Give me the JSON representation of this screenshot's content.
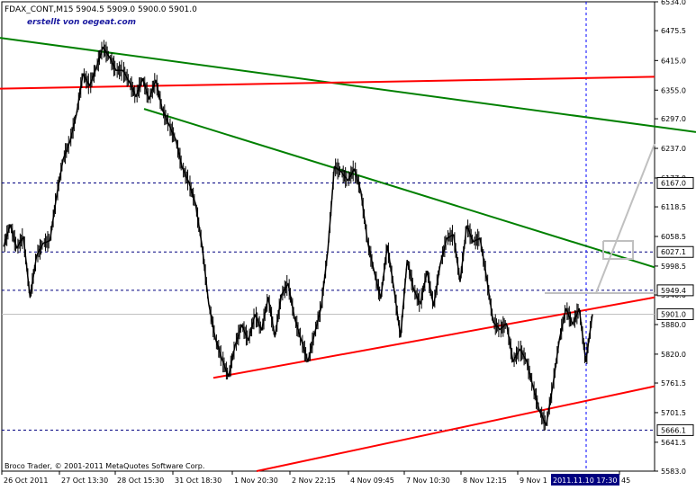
{
  "chart_data": {
    "type": "line",
    "title": "FDAX_CONT,M15  5904.5 5909.0 5900.0 5901.0",
    "watermark": "erstellt von oegeat.com",
    "copyright": "Broco Trader, © 2001-2011 MetaQuotes Software Corp.",
    "xlabel": "",
    "ylabel": "",
    "ylim": [
      5583,
      6534
    ],
    "y_ticks": [
      "6534.0",
      "6475.5",
      "6415.0",
      "6355.0",
      "6297.0",
      "6237.0",
      "6177.0",
      "6118.5",
      "6058.5",
      "5998.5",
      "5940.0",
      "5880.0",
      "5820.0",
      "5761.5",
      "5701.5",
      "5641.5",
      "5583.0"
    ],
    "x_ticks": [
      "26 Oct 2011",
      "27 Oct 13:30",
      "28 Oct 15:30",
      "31 Oct 18:30",
      "1 Nov 20:30",
      "2 Nov 22:15",
      "4 Nov 09:45",
      "7 Nov 10:30",
      "8 Nov 12:15",
      "9 Nov 1",
      "2011.11.10 17:30",
      "45"
    ],
    "cursor_label": "2011.11.10 17:30",
    "levels": [
      {
        "value": 6167.0,
        "label": "6167.0",
        "style": "dashed"
      },
      {
        "value": 6027.1,
        "label": "6027.1",
        "style": "dashed"
      },
      {
        "value": 5949.4,
        "label": "5949.4",
        "style": "dashed"
      },
      {
        "value": 5901.0,
        "label": "5901.0",
        "style": "solid"
      },
      {
        "value": 5666.1,
        "label": "5666.1",
        "style": "dashed"
      }
    ],
    "series": [
      {
        "values": [
          6038,
          6082,
          6035,
          6058,
          5935,
          6020,
          6045,
          6050,
          6140,
          6215,
          6250,
          6305,
          6388,
          6364,
          6400,
          6442,
          6422,
          6395,
          6395,
          6372,
          6342,
          6378,
          6337,
          6375,
          6315,
          6285,
          6255,
          6198,
          6168,
          6125,
          6040,
          5922,
          5852,
          5810,
          5775,
          5838,
          5879,
          5848,
          5900,
          5869,
          5935,
          5855,
          5940,
          5963,
          5892,
          5848,
          5805,
          5862,
          5915,
          6030,
          6200,
          6190,
          6172,
          6195,
          6150,
          6048,
          5988,
          5933,
          6040,
          5952,
          5855,
          6010,
          5950,
          5922,
          5988,
          5918,
          6003,
          6055,
          6062,
          5967,
          6080,
          6048,
          6055,
          5975,
          5885,
          5870,
          5882,
          5805,
          5830,
          5808,
          5755,
          5705,
          5676,
          5755,
          5850,
          5912,
          5881,
          5912,
          5805,
          5901
        ]
      }
    ],
    "trendlines": [
      {
        "color": "#008000",
        "x1": 0,
        "y1": 6461,
        "x2": 773,
        "y2": 6270
      },
      {
        "color": "#008000",
        "x1": 160,
        "y1": 6317,
        "x2": 727,
        "y2": 5996
      },
      {
        "color": "#ff0000",
        "x1": 0,
        "y1": 6358,
        "x2": 727,
        "y2": 6382
      },
      {
        "color": "#ff0000",
        "x1": 237,
        "y1": 5772,
        "x2": 727,
        "y2": 5935
      },
      {
        "color": "#ff0000",
        "x1": 285,
        "y1": 5583,
        "x2": 727,
        "y2": 5755
      }
    ],
    "colors": {
      "background": "#ffffff",
      "price_line": "#000000",
      "level_line": "#000080",
      "cursor_line": "#0000ff",
      "label_bg": "#000080"
    }
  }
}
